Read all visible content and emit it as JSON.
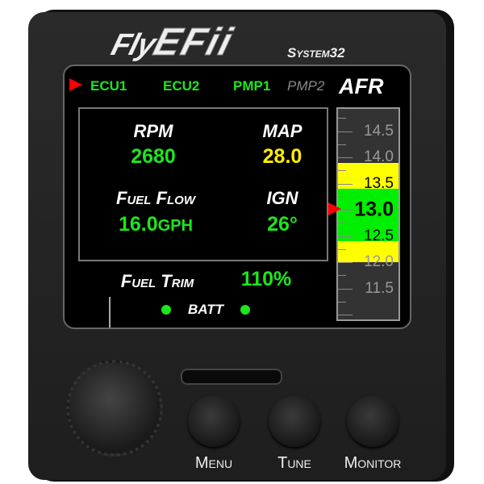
{
  "brand": {
    "logo": "FlyEFii",
    "model": "System32"
  },
  "tabs": [
    {
      "label": "ECU1",
      "active": true,
      "color": "#1ee61e"
    },
    {
      "label": "ECU2",
      "color": "#1ee61e"
    },
    {
      "label": "PMP1",
      "color": "#1ee61e"
    },
    {
      "label": "PMP2",
      "color": "#888888"
    }
  ],
  "afr": {
    "label": "AFR",
    "current": "13.0",
    "value": 13.0,
    "scale": [
      "14.5",
      "14.0",
      "13.5",
      "13.0",
      "12.5",
      "12.0",
      "11.5"
    ],
    "bands": [
      {
        "from": 12.0,
        "to": 12.4,
        "color": "#ffff00"
      },
      {
        "from": 12.4,
        "to": 13.4,
        "color": "#00ee00"
      },
      {
        "from": 13.4,
        "to": 13.9,
        "color": "#ffff00"
      }
    ]
  },
  "readouts": {
    "rpm_label": "RPM",
    "rpm": "2680",
    "map_label": "MAP",
    "map": "28.0",
    "ff_label": "Fuel Flow",
    "ff": "16.0",
    "ff_unit": "GPH",
    "ign_label": "IGN",
    "ign": "26°"
  },
  "trim": {
    "label": "Fuel Trim",
    "value": "110%"
  },
  "batt": {
    "label": "BATT"
  },
  "buttons": {
    "menu": "Menu",
    "tune": "Tune",
    "monitor": "Monitor"
  },
  "colors": {
    "green": "#1ee61e",
    "yellow": "#ffee00",
    "pointer": "#ff0000"
  }
}
